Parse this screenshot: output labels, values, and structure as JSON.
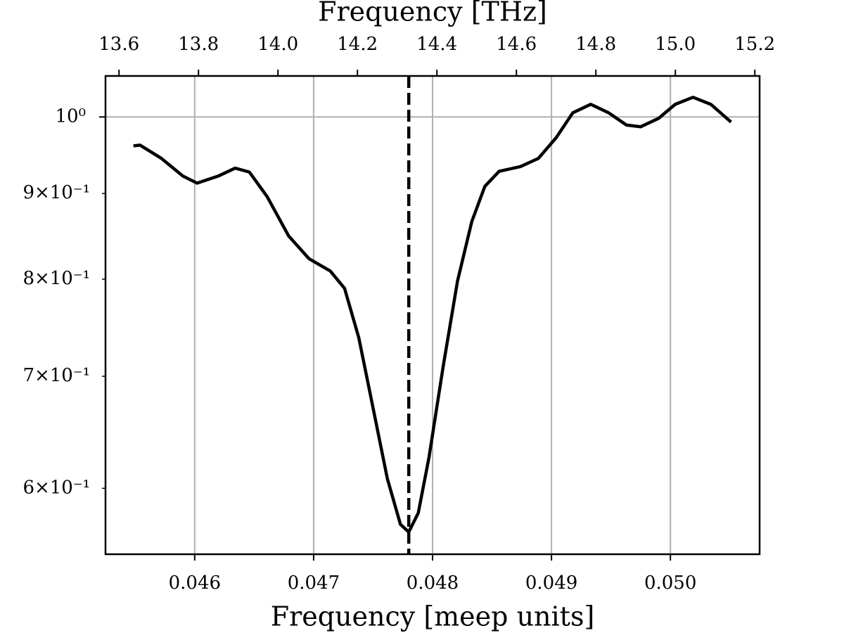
{
  "chart_data": {
    "type": "line",
    "xlabel": "Frequency [meep units]",
    "x2label": "Frequency [THz]",
    "xlim": [
      0.04525,
      0.05075
    ],
    "xticks": [
      0.046,
      0.047,
      0.048,
      0.049,
      0.05
    ],
    "xtick_labels": [
      "0.046",
      "0.047",
      "0.048",
      "0.049",
      "0.050"
    ],
    "x2lim": [
      13.566,
      15.212
    ],
    "x2ticks": [
      13.6,
      13.8,
      {
        "value": 14,
        "label": "14.0"
      },
      14.2,
      14.4,
      14.6,
      14.8,
      {
        "value": 15,
        "label": "15.0"
      },
      15.2
    ],
    "ylim": [
      0.548,
      1.058
    ],
    "log_y": true,
    "yticks": [
      {
        "value": 1,
        "label": "10⁰"
      }
    ],
    "yminor_ticks": [
      {
        "value": 0.9,
        "label": "9×10⁻¹"
      },
      {
        "value": 0.8,
        "label": "8×10⁻¹"
      },
      {
        "value": 0.7,
        "label": "7×10⁻¹"
      },
      {
        "value": 0.6,
        "label": "6×10⁻¹"
      }
    ],
    "grid": true,
    "vline": 0.0478,
    "x": [
      0.045485,
      0.04554,
      0.04572,
      0.0459,
      0.04602,
      0.0462,
      0.04634,
      0.04646,
      0.04661,
      0.04679,
      0.04696,
      0.04714,
      0.04726,
      0.04738,
      0.0475,
      0.04762,
      0.04773,
      0.0478,
      0.04788,
      0.04797,
      0.04809,
      0.04821,
      0.04833,
      0.04844,
      0.04856,
      0.04874,
      0.04889,
      0.04904,
      0.04918,
      0.04933,
      0.04948,
      0.04963,
      0.04975,
      0.0499,
      0.05004,
      0.05019,
      0.05034,
      0.05051
    ],
    "series": [
      {
        "color": "#000000",
        "values": [
          0.961,
          0.962,
          0.9446,
          0.922,
          0.913,
          0.922,
          0.932,
          0.927,
          0.896,
          0.849,
          0.823,
          0.809,
          0.79,
          0.738,
          0.67,
          0.608,
          0.571,
          0.565,
          0.58,
          0.626,
          0.71,
          0.798,
          0.866,
          0.909,
          0.928,
          0.934,
          0.9446,
          0.972,
          1.0058,
          1.0175,
          1.0058,
          0.989,
          0.9866,
          0.998,
          1.0175,
          1.0274,
          1.0175,
          0.993
        ]
      }
    ]
  }
}
